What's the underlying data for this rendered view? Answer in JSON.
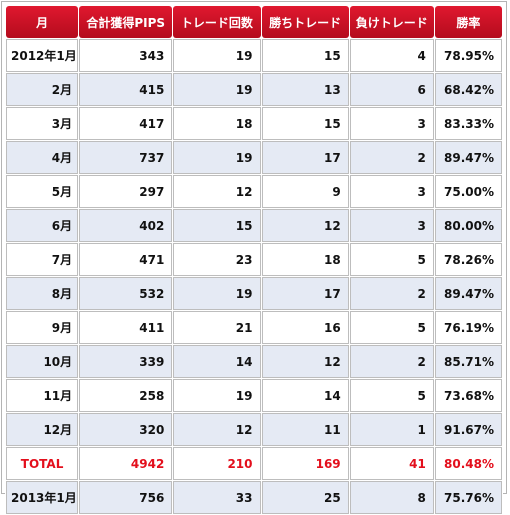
{
  "headers": [
    "月",
    "合計獲得PIPS",
    "トレード回数",
    "勝ちトレード",
    "負けトレード",
    "勝率"
  ],
  "rows": [
    {
      "month": "2012年1月",
      "pips": "343",
      "trades": "19",
      "wins": "15",
      "losses": "4",
      "rate": "78.95%"
    },
    {
      "month": "2月",
      "pips": "415",
      "trades": "19",
      "wins": "13",
      "losses": "6",
      "rate": "68.42%"
    },
    {
      "month": "3月",
      "pips": "417",
      "trades": "18",
      "wins": "15",
      "losses": "3",
      "rate": "83.33%"
    },
    {
      "month": "4月",
      "pips": "737",
      "trades": "19",
      "wins": "17",
      "losses": "2",
      "rate": "89.47%"
    },
    {
      "month": "5月",
      "pips": "297",
      "trades": "12",
      "wins": "9",
      "losses": "3",
      "rate": "75.00%"
    },
    {
      "month": "6月",
      "pips": "402",
      "trades": "15",
      "wins": "12",
      "losses": "3",
      "rate": "80.00%"
    },
    {
      "month": "7月",
      "pips": "471",
      "trades": "23",
      "wins": "18",
      "losses": "5",
      "rate": "78.26%"
    },
    {
      "month": "8月",
      "pips": "532",
      "trades": "19",
      "wins": "17",
      "losses": "2",
      "rate": "89.47%"
    },
    {
      "month": "9月",
      "pips": "411",
      "trades": "21",
      "wins": "16",
      "losses": "5",
      "rate": "76.19%"
    },
    {
      "month": "10月",
      "pips": "339",
      "trades": "14",
      "wins": "12",
      "losses": "2",
      "rate": "85.71%"
    },
    {
      "month": "11月",
      "pips": "258",
      "trades": "19",
      "wins": "14",
      "losses": "5",
      "rate": "73.68%"
    },
    {
      "month": "12月",
      "pips": "320",
      "trades": "12",
      "wins": "11",
      "losses": "1",
      "rate": "91.67%"
    }
  ],
  "total": {
    "month": "TOTAL",
    "pips": "4942",
    "trades": "210",
    "wins": "169",
    "losses": "41",
    "rate": "80.48%"
  },
  "after": {
    "month": "2013年1月",
    "pips": "756",
    "trades": "33",
    "wins": "25",
    "losses": "8",
    "rate": "75.76%"
  },
  "colors": {
    "header": "#d0142a",
    "total_text": "#e30f1c",
    "stripe": "#e5eaf4"
  }
}
